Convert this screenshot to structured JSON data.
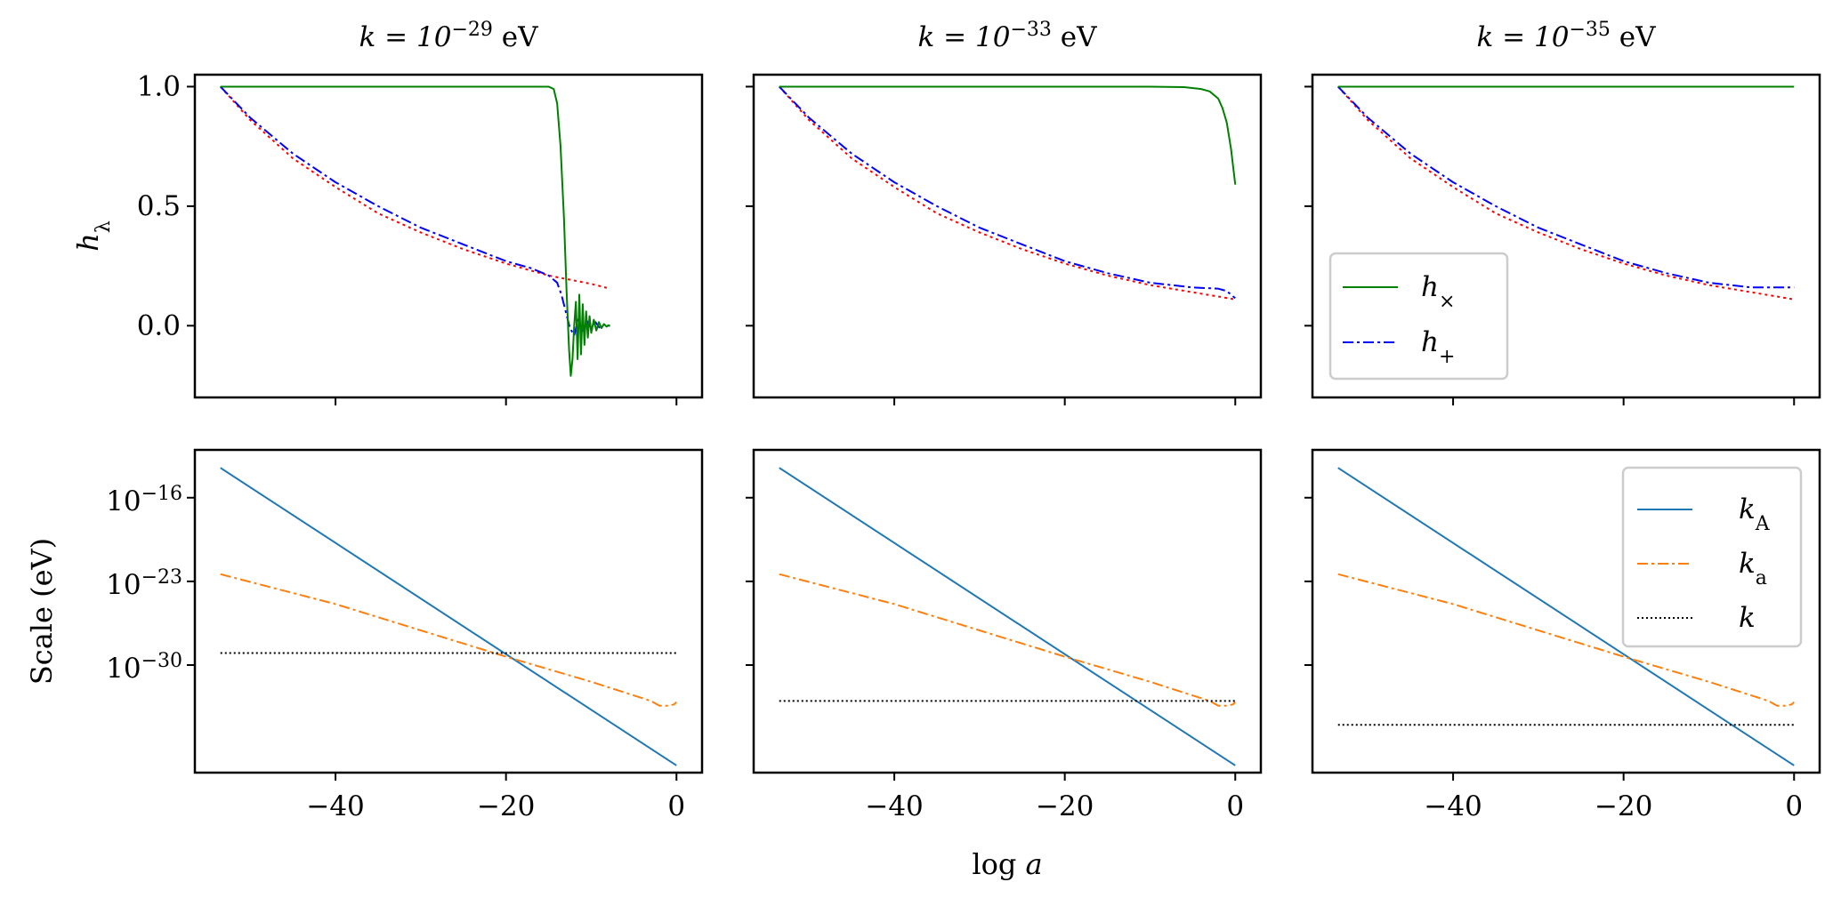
{
  "chart_data": {
    "type": "line",
    "xlabel": "log a",
    "ylabel_top": "hλ",
    "ylabel_bottom": "Scale (eV)",
    "xlim": [
      -56.5,
      3
    ],
    "xticks": [
      -40,
      -20,
      0
    ],
    "xtick_labels": [
      "−40",
      "−20",
      "0"
    ],
    "top_ylim": [
      -0.3,
      1.05
    ],
    "top_yticks": [
      1.0,
      0.5,
      0.0
    ],
    "top_ytick_labels": [
      "1.0",
      "0.5",
      "0.0"
    ],
    "bottom_ylim_log10": [
      -39,
      -12
    ],
    "bottom_yticks_log10": [
      -16,
      -23,
      -30
    ],
    "bottom_ytick_bases": [
      "10",
      "10",
      "10"
    ],
    "bottom_ytick_exps": [
      "−16",
      "−23",
      "−30"
    ],
    "series_colors": {
      "h_cross": "#008000",
      "h_plus": "#0000ff",
      "reference": "#ff0000",
      "k_A": "#1f77b4",
      "k_a": "#ff7f0e",
      "k": "#000000"
    },
    "panels": [
      {
        "title_prefix": "k = 10",
        "title_exp": "−29",
        "title_unit": " eV",
        "k_log10": -29,
        "top": {
          "h_cross": {
            "x": [
              -53.5,
              -40,
              -30,
              -20,
              -16,
              -15,
              -14.4,
              -14,
              -13.6,
              -13.2,
              -12.9,
              -12.6,
              -12.4,
              -12.2,
              -12.0,
              -11.8,
              -11.6,
              -11.4,
              -11.2,
              -11.0,
              -10.8,
              -10.6,
              -10.4,
              -10.2,
              -10.0,
              -9.7,
              -9.4,
              -9.1,
              -8.8,
              -8.5,
              -8.2,
              -8.0,
              -7.8
            ],
            "y": [
              1.0,
              1.0,
              1.0,
              1.0,
              1.0,
              1.0,
              0.99,
              0.93,
              0.75,
              0.45,
              0.15,
              -0.1,
              -0.21,
              -0.14,
              0.0,
              0.1,
              -0.14,
              0.13,
              -0.12,
              0.09,
              -0.08,
              0.06,
              -0.05,
              0.04,
              -0.03,
              0.025,
              -0.02,
              0.015,
              -0.01,
              0.007,
              -0.004,
              0.002,
              0.0
            ]
          },
          "h_plus": {
            "x": [
              -53.5,
              -50,
              -45,
              -40,
              -35,
              -30,
              -25,
              -20,
              -17,
              -15,
              -14,
              -13.5,
              -13,
              -12.5,
              -12,
              -11.5,
              -11,
              -10.5,
              -10,
              -9.5,
              -9,
              -8.5,
              -8,
              -7.8
            ],
            "y": [
              1.0,
              0.87,
              0.72,
              0.6,
              0.5,
              0.41,
              0.34,
              0.27,
              0.24,
              0.21,
              0.18,
              0.13,
              0.06,
              -0.01,
              -0.04,
              0.03,
              -0.03,
              0.02,
              -0.02,
              0.015,
              -0.01,
              0.005,
              0.0,
              0.0
            ]
          },
          "reference": {
            "x": [
              -53.5,
              -50,
              -45,
              -40,
              -35,
              -30,
              -25,
              -20,
              -15,
              -10,
              -7.8
            ],
            "y": [
              1.0,
              0.86,
              0.7,
              0.58,
              0.47,
              0.39,
              0.32,
              0.26,
              0.21,
              0.175,
              0.155
            ]
          }
        },
        "bottom": {
          "k_A": {
            "x": [
              -53.5,
              0
            ],
            "log10": [
              -13.5,
              -38.4
            ]
          },
          "k_a": {
            "x": [
              -53.5,
              -40,
              -20,
              -10,
              -3,
              -2,
              -1,
              -0.3,
              0
            ],
            "log10": [
              -22.4,
              -24.9,
              -29.3,
              -31.4,
              -33.0,
              -33.4,
              -33.4,
              -33.3,
              -33.1
            ]
          },
          "k": {
            "x": [
              -53.5,
              0
            ],
            "log10": [
              -29,
              -29
            ]
          }
        }
      },
      {
        "title_prefix": "k = 10",
        "title_exp": "−33",
        "title_unit": " eV",
        "k_log10": -33,
        "top": {
          "h_cross": {
            "x": [
              -53.5,
              -20,
              -10,
              -6,
              -4,
              -3,
              -2,
              -1.5,
              -1,
              -0.5,
              0
            ],
            "y": [
              1.0,
              1.0,
              1.0,
              0.998,
              0.99,
              0.98,
              0.95,
              0.91,
              0.85,
              0.74,
              0.59
            ]
          },
          "h_plus": {
            "x": [
              -53.5,
              -50,
              -45,
              -40,
              -35,
              -30,
              -25,
              -20,
              -15,
              -10,
              -5,
              -2,
              -1,
              -0.5,
              0
            ],
            "y": [
              1.0,
              0.87,
              0.72,
              0.6,
              0.5,
              0.41,
              0.34,
              0.27,
              0.22,
              0.18,
              0.16,
              0.155,
              0.145,
              0.13,
              0.115
            ]
          },
          "reference": {
            "x": [
              -53.5,
              -50,
              -45,
              -40,
              -35,
              -30,
              -25,
              -20,
              -15,
              -10,
              -5,
              0
            ],
            "y": [
              1.0,
              0.86,
              0.7,
              0.58,
              0.47,
              0.39,
              0.32,
              0.26,
              0.21,
              0.17,
              0.14,
              0.11
            ]
          }
        },
        "bottom": {
          "k_A": {
            "x": [
              -53.5,
              0
            ],
            "log10": [
              -13.5,
              -38.4
            ]
          },
          "k_a": {
            "x": [
              -53.5,
              -40,
              -20,
              -10,
              -3,
              -2,
              -1,
              -0.3,
              0
            ],
            "log10": [
              -22.4,
              -24.9,
              -29.3,
              -31.4,
              -33.0,
              -33.4,
              -33.4,
              -33.3,
              -33.1
            ]
          },
          "k": {
            "x": [
              -53.5,
              0
            ],
            "log10": [
              -33,
              -33
            ]
          }
        }
      },
      {
        "title_prefix": "k = 10",
        "title_exp": "−35",
        "title_unit": " eV",
        "k_log10": -35,
        "top": {
          "h_cross": {
            "x": [
              -53.5,
              0
            ],
            "y": [
              1.0,
              1.0
            ]
          },
          "h_plus": {
            "x": [
              -53.5,
              -50,
              -45,
              -40,
              -35,
              -30,
              -25,
              -20,
              -15,
              -10,
              -5,
              0
            ],
            "y": [
              1.0,
              0.87,
              0.72,
              0.6,
              0.5,
              0.41,
              0.34,
              0.27,
              0.22,
              0.18,
              0.16,
              0.16
            ]
          },
          "reference": {
            "x": [
              -53.5,
              -50,
              -45,
              -40,
              -35,
              -30,
              -25,
              -20,
              -15,
              -10,
              -5,
              0
            ],
            "y": [
              1.0,
              0.86,
              0.7,
              0.58,
              0.47,
              0.39,
              0.32,
              0.26,
              0.21,
              0.17,
              0.14,
              0.11
            ]
          }
        },
        "bottom": {
          "k_A": {
            "x": [
              -53.5,
              0
            ],
            "log10": [
              -13.5,
              -38.4
            ]
          },
          "k_a": {
            "x": [
              -53.5,
              -40,
              -20,
              -10,
              -3,
              -2,
              -1,
              -0.3,
              0
            ],
            "log10": [
              -22.4,
              -24.9,
              -29.3,
              -31.4,
              -33.0,
              -33.4,
              -33.4,
              -33.3,
              -33.1
            ]
          },
          "k": {
            "x": [
              -53.5,
              0
            ],
            "log10": [
              -35,
              -35
            ]
          }
        }
      }
    ],
    "legend_top": {
      "location": "lower-left of top-right panel",
      "entries": [
        {
          "series": "h_cross",
          "label_main": "h",
          "label_sub": "×"
        },
        {
          "series": "h_plus",
          "label_main": "h",
          "label_sub": "+"
        }
      ]
    },
    "legend_bottom": {
      "location": "upper-right of bottom-right panel",
      "entries": [
        {
          "series": "k_A",
          "label_main": "k",
          "label_sub": "A"
        },
        {
          "series": "k_a",
          "label_main": "k",
          "label_sub": "a"
        },
        {
          "series": "k",
          "label_main": "k",
          "label_sub": ""
        }
      ]
    }
  }
}
